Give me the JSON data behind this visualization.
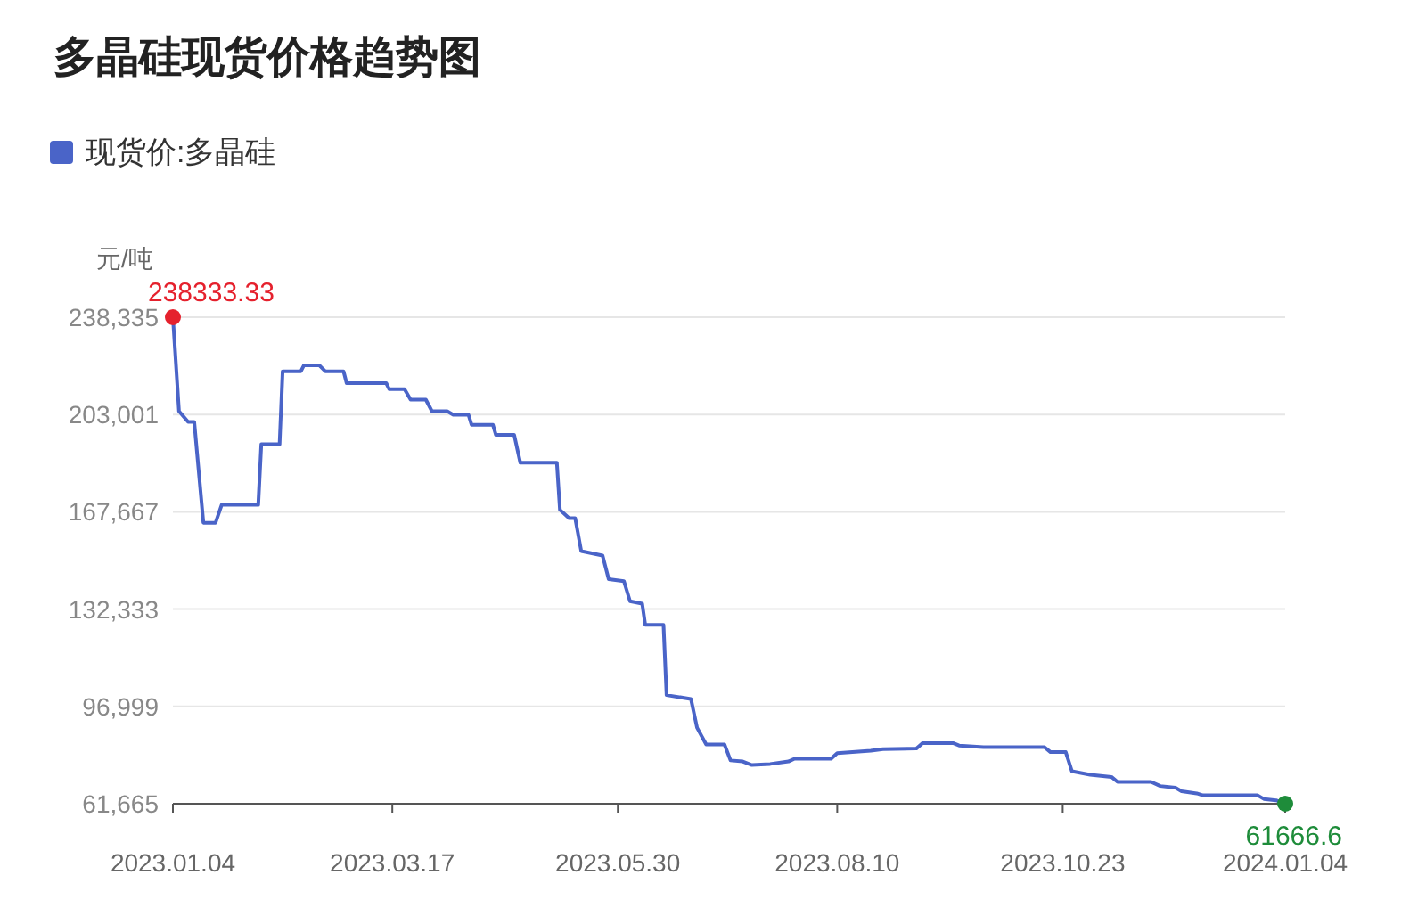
{
  "chart_data": {
    "type": "line",
    "title": "多晶硅现货价格趋势图",
    "ylabel": "元/吨",
    "legend": "top left",
    "grid": "y",
    "xlim": [
      "2023-01-04",
      "2024-01-04"
    ],
    "xticks": [
      {
        "value": "2023-01-04",
        "label": "2023.01.04"
      },
      {
        "value": "2023-03-17",
        "label": "2023.03.17"
      },
      {
        "value": "2023-05-30",
        "label": "2023.05.30"
      },
      {
        "value": "2023-08-10",
        "label": "2023.08.10"
      },
      {
        "value": "2023-10-23",
        "label": "2023.10.23"
      },
      {
        "value": "2024-01-04",
        "label": "2024.01.04"
      }
    ],
    "ylim": [
      61665,
      238335
    ],
    "yticks": [
      {
        "value": 61665,
        "label": "61,665"
      },
      {
        "value": 96999,
        "label": "96,999"
      },
      {
        "value": 132333,
        "label": "132,333"
      },
      {
        "value": 167667,
        "label": "167,667"
      },
      {
        "value": 203001,
        "label": "203,001"
      },
      {
        "value": 238335,
        "label": "238,335"
      }
    ],
    "annotations": [
      {
        "text": "238333.33",
        "x": "2023-01-04",
        "y": 238333.33
      },
      {
        "text": "61666.6",
        "x": "2024-01-04",
        "y": 61666.6
      }
    ],
    "series": [
      {
        "name": "现货价:多晶硅",
        "color": "#4a64c8",
        "x": [
          "2023-01-04",
          "2023-01-06",
          "2023-01-09",
          "2023-01-11",
          "2023-01-14",
          "2023-01-18",
          "2023-01-20",
          "2023-02-01",
          "2023-02-02",
          "2023-02-08",
          "2023-02-09",
          "2023-02-15",
          "2023-02-16",
          "2023-02-21",
          "2023-02-23",
          "2023-03-01",
          "2023-03-02",
          "2023-03-15",
          "2023-03-16",
          "2023-03-21",
          "2023-03-23",
          "2023-03-28",
          "2023-03-30",
          "2023-04-04",
          "2023-04-06",
          "2023-04-11",
          "2023-04-12",
          "2023-04-19",
          "2023-04-20",
          "2023-04-26",
          "2023-04-28",
          "2023-05-10",
          "2023-05-11",
          "2023-05-14",
          "2023-05-16",
          "2023-05-18",
          "2023-05-25",
          "2023-05-27",
          "2023-06-01",
          "2023-06-03",
          "2023-06-07",
          "2023-06-08",
          "2023-06-14",
          "2023-06-15",
          "2023-06-23",
          "2023-06-25",
          "2023-06-28",
          "2023-07-04",
          "2023-07-06",
          "2023-07-10",
          "2023-07-13",
          "2023-07-19",
          "2023-07-25",
          "2023-07-27",
          "2023-08-08",
          "2023-08-10",
          "2023-08-21",
          "2023-08-25",
          "2023-09-05",
          "2023-09-07",
          "2023-09-17",
          "2023-09-19",
          "2023-09-27",
          "2023-10-17",
          "2023-10-19",
          "2023-10-24",
          "2023-10-26",
          "2023-11-01",
          "2023-11-08",
          "2023-11-10",
          "2023-11-21",
          "2023-11-24",
          "2023-11-29",
          "2023-12-01",
          "2023-12-06",
          "2023-12-08",
          "2023-12-26",
          "2023-12-28",
          "2024-01-01",
          "2024-01-04"
        ],
        "values": [
          238333.33,
          204200,
          200300,
          200300,
          163700,
          163700,
          170200,
          170200,
          192200,
          192200,
          218700,
          218700,
          220900,
          220900,
          218700,
          218700,
          214400,
          214400,
          212200,
          212200,
          208400,
          208400,
          204200,
          204200,
          202900,
          202900,
          199300,
          199300,
          195600,
          195600,
          185500,
          185500,
          168400,
          165400,
          165400,
          153400,
          151800,
          143200,
          142500,
          135200,
          134300,
          126600,
          126600,
          101100,
          99700,
          89300,
          83200,
          83200,
          77400,
          77000,
          75700,
          76100,
          77000,
          78000,
          78000,
          80000,
          80900,
          81500,
          81700,
          83700,
          83700,
          82800,
          82200,
          82200,
          80400,
          80400,
          73500,
          72200,
          71400,
          69600,
          69600,
          68100,
          67500,
          66200,
          65400,
          64700,
          64700,
          63400,
          62900,
          61666.6
        ]
      }
    ]
  }
}
